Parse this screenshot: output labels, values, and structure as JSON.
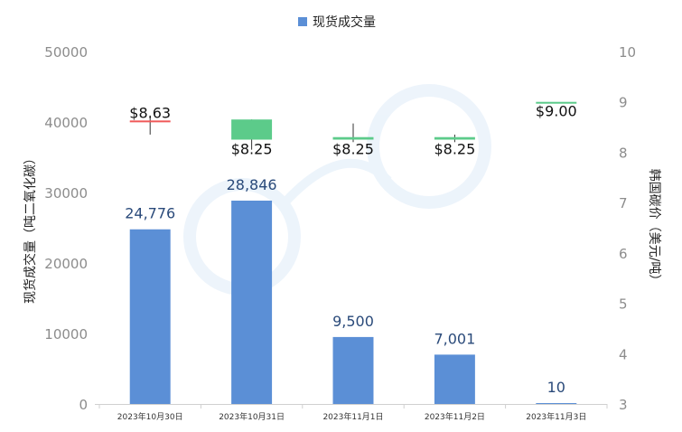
{
  "chart_data": {
    "type": "bar",
    "categories": [
      "2023年10月30日",
      "2023年10月31日",
      "2023年11月1日",
      "2023年11月2日",
      "2023年11月3日"
    ],
    "series": [
      {
        "name": "现货成交量",
        "axis": "left",
        "values": [
          24776,
          28846,
          9500,
          7001,
          10
        ],
        "value_labels": [
          "24,776",
          "28,846",
          "9,500",
          "7,001",
          "10"
        ],
        "color": "#5b8fd6"
      },
      {
        "type": "candlestick",
        "axis": "right",
        "ohlc": [
          {
            "open": 8.63,
            "close": 8.6,
            "high": 8.73,
            "low": 8.35
          },
          {
            "open": 8.25,
            "close": 8.65,
            "high": 8.65,
            "low": 8.05
          },
          {
            "open": 8.25,
            "close": 8.3,
            "high": 8.57,
            "low": 8.2
          },
          {
            "open": 8.25,
            "close": 8.3,
            "high": 8.35,
            "low": 8.2
          },
          {
            "open": 9.0,
            "close": 9.0,
            "high": 9.0,
            "low": 9.0
          }
        ],
        "labels": [
          "$8.63",
          "$8.25",
          "$8.25",
          "$8.25",
          "$9.00"
        ],
        "up_color": "#5ccb8a",
        "down_color": "#f05a5a"
      }
    ],
    "ylabel": "现货成交量（吨二氧化碳）",
    "y2label": "韩国碳价（美元/吨）",
    "ylim": [
      0,
      50000
    ],
    "y_ticks": [
      "0",
      "10000",
      "20000",
      "30000",
      "40000",
      "50000"
    ],
    "y2lim": [
      3,
      10
    ],
    "y2_ticks": [
      "3",
      "4",
      "5",
      "6",
      "7",
      "8",
      "9",
      "10"
    ],
    "legend_position": "top",
    "grid": false
  }
}
